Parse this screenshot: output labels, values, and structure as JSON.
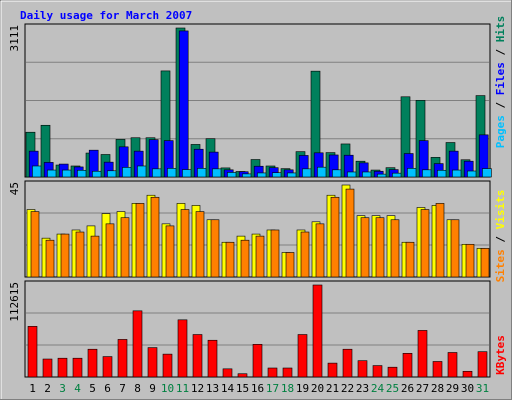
{
  "title": "Daily usage for March 2007",
  "colors": {
    "hits": "#00805c",
    "files": "#0000ff",
    "pages": "#00c0ff",
    "visits": "#ffff00",
    "sites": "#ff8000",
    "kbytes": "#ff0000",
    "title": "#0000ff",
    "weekend_day": "#008040",
    "weekday": "#000000"
  },
  "chart_data": [
    {
      "type": "bar",
      "panel": "top",
      "scale_label": "3111",
      "ylim": [
        0,
        3111
      ],
      "series": [
        {
          "name": "Hits",
          "values": [
            935,
            1080,
            250,
            230,
            500,
            470,
            785,
            820,
            820,
            2215,
            3111,
            680,
            800,
            190,
            115,
            365,
            230,
            175,
            530,
            2210,
            510,
            690,
            330,
            145,
            195,
            1675,
            1600,
            410,
            720,
            360,
            1700
          ]
        },
        {
          "name": "Files",
          "values": [
            540,
            305,
            270,
            210,
            560,
            310,
            630,
            540,
            780,
            760,
            3050,
            580,
            520,
            150,
            110,
            225,
            195,
            150,
            450,
            505,
            460,
            455,
            295,
            120,
            155,
            490,
            760,
            280,
            540,
            330,
            880
          ]
        },
        {
          "name": "Pages",
          "values": [
            230,
            145,
            145,
            140,
            120,
            130,
            200,
            230,
            170,
            180,
            155,
            180,
            170,
            95,
            65,
            85,
            90,
            85,
            170,
            205,
            150,
            105,
            105,
            60,
            80,
            180,
            150,
            140,
            145,
            125,
            175
          ]
        }
      ],
      "legend": [
        "Pages",
        "Files",
        "Hits"
      ]
    },
    {
      "type": "bar",
      "panel": "middle",
      "scale_label": "45",
      "ylim": [
        0,
        45
      ],
      "series": [
        {
          "name": "Visits",
          "values": [
            33,
            19,
            21,
            23,
            25,
            31,
            32,
            36,
            40,
            26,
            36,
            35,
            28,
            17,
            20,
            21,
            23,
            12,
            23,
            27,
            40,
            45,
            30,
            30,
            30,
            17,
            34,
            35,
            28,
            16,
            14
          ]
        },
        {
          "name": "Sites",
          "values": [
            32,
            18,
            21,
            22,
            20,
            26,
            29,
            36,
            39,
            25,
            33,
            32,
            28,
            17,
            18,
            20,
            23,
            12,
            22,
            26,
            39,
            43,
            29,
            29,
            28,
            17,
            33,
            36,
            28,
            16,
            14
          ]
        }
      ],
      "legend": [
        "Sites",
        "Visits"
      ]
    },
    {
      "type": "bar",
      "panel": "bottom",
      "scale_label": "112615",
      "ylim": [
        0,
        112615
      ],
      "series": [
        {
          "name": "KBytes",
          "values": [
            62000,
            22000,
            23000,
            23000,
            34000,
            25000,
            46000,
            81000,
            36000,
            28000,
            70000,
            52000,
            45000,
            10000,
            4000,
            40000,
            11000,
            11000,
            52000,
            112615,
            17000,
            34000,
            20000,
            14000,
            12000,
            29000,
            57000,
            19000,
            30000,
            7000,
            31000
          ]
        }
      ],
      "legend": [
        "KBytes"
      ]
    }
  ],
  "days": [
    "1",
    "2",
    "3",
    "4",
    "5",
    "6",
    "7",
    "8",
    "9",
    "10",
    "11",
    "12",
    "13",
    "14",
    "15",
    "16",
    "17",
    "18",
    "19",
    "20",
    "21",
    "22",
    "23",
    "24",
    "25",
    "26",
    "27",
    "28",
    "29",
    "30",
    "31"
  ],
  "weekend_days": [
    3,
    4,
    10,
    11,
    17,
    18,
    24,
    25,
    31
  ]
}
